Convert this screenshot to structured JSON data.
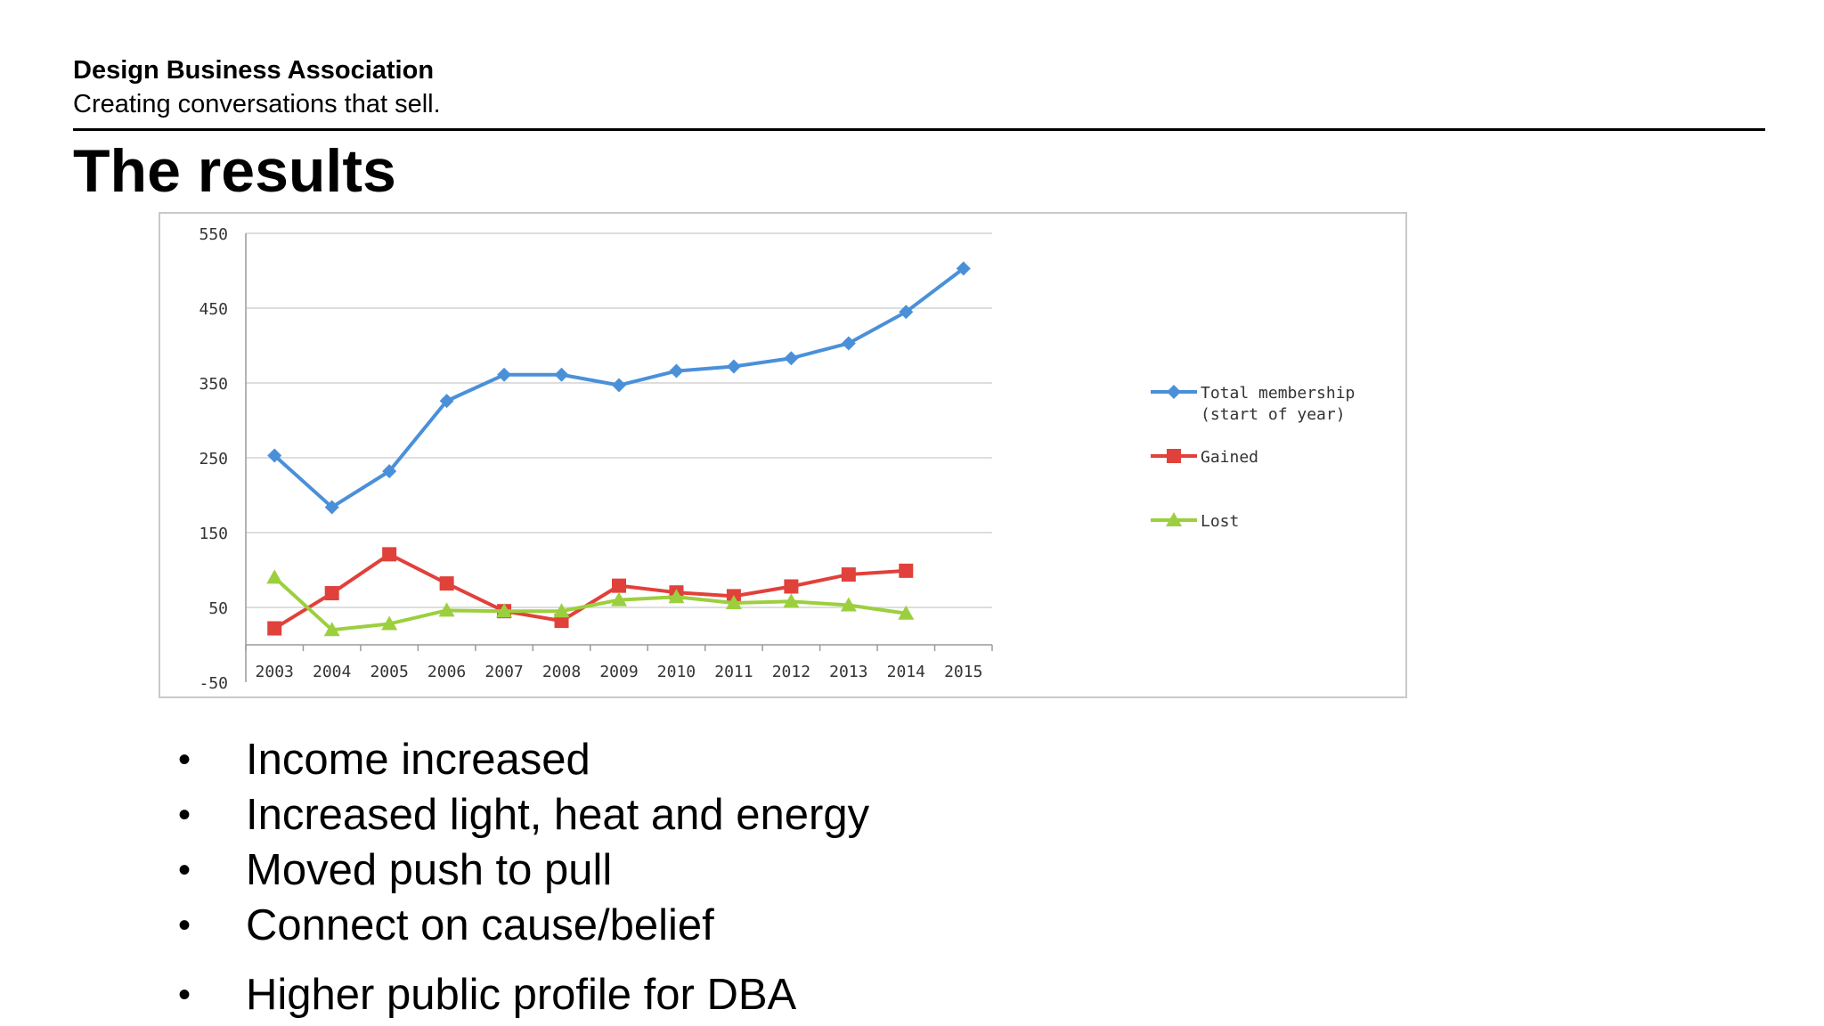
{
  "header": {
    "org": "Design Business Association",
    "tagline": "Creating conversations that sell."
  },
  "slide_title": "The results",
  "bullets": [
    "Income increased",
    "Increased light, heat and energy",
    "Moved push to pull",
    "Connect on cause/belief",
    "Higher public profile for DBA"
  ],
  "chart_data": {
    "type": "line",
    "title": "",
    "xlabel": "",
    "ylabel": "",
    "categories": [
      "2003",
      "2004",
      "2005",
      "2006",
      "2007",
      "2008",
      "2009",
      "2010",
      "2011",
      "2012",
      "2013",
      "2014",
      "2015"
    ],
    "ylim": [
      -50,
      550
    ],
    "yticks": [
      -50,
      50,
      150,
      250,
      350,
      450,
      550
    ],
    "grid": true,
    "legend": "right",
    "series": [
      {
        "name": "Total membership (start of year)",
        "legend_lines": [
          "Total membership",
          "(start of year)"
        ],
        "color": "#4a90d9",
        "marker": "diamond",
        "values": [
          253,
          184,
          232,
          326,
          361,
          361,
          347,
          366,
          372,
          383,
          403,
          445,
          503
        ]
      },
      {
        "name": "Gained",
        "legend_lines": [
          "Gained"
        ],
        "color": "#e0413a",
        "marker": "square",
        "values": [
          22,
          69,
          121,
          82,
          45,
          32,
          79,
          70,
          65,
          78,
          94,
          99,
          null
        ]
      },
      {
        "name": "Lost",
        "legend_lines": [
          "Lost"
        ],
        "color": "#9ccf3e",
        "marker": "triangle",
        "values": [
          90,
          20,
          28,
          46,
          45,
          45,
          60,
          64,
          56,
          58,
          53,
          42,
          null
        ]
      }
    ]
  }
}
